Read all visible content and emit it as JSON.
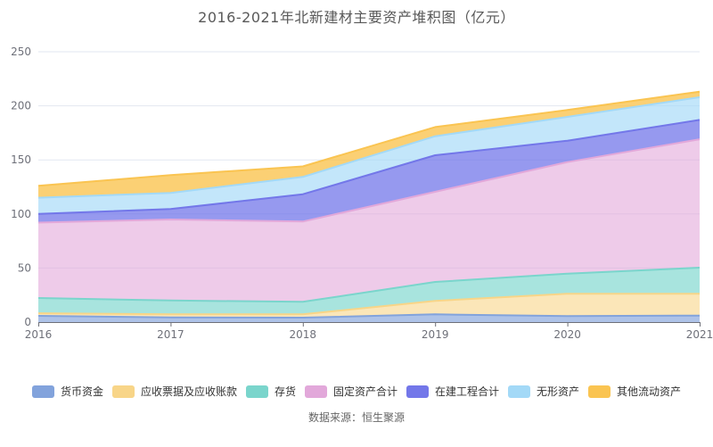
{
  "title": "2016-2021年北新建材主要资产堆积图（亿元）",
  "source": "数据来源：恒生聚源",
  "axis": {
    "label_color": "#6E7079",
    "grid_color": "#E2E7F1",
    "axis_line_color": "#6E7079"
  },
  "chart_data": {
    "type": "area",
    "stacked": true,
    "title": "2016-2021年北新建材主要资产堆积图（亿元）",
    "x": [
      "2016",
      "2017",
      "2018",
      "2019",
      "2020",
      "2021"
    ],
    "ylim": [
      0,
      250
    ],
    "ytick_step": 50,
    "grid": true,
    "legend_position": "bottom",
    "series": [
      {
        "name": "货币资金",
        "color": "#82A3DC",
        "fill_opacity": 0.65,
        "values": [
          5.8,
          4.4,
          4.1,
          7.2,
          5.5,
          6.0
        ]
      },
      {
        "name": "应收票据及应收账款",
        "color": "#F8D588",
        "fill_opacity": 0.6,
        "values": [
          2.4,
          2.8,
          3.1,
          12.4,
          20.7,
          20.2
        ]
      },
      {
        "name": "存货",
        "color": "#7AD5CC",
        "fill_opacity": 0.65,
        "values": [
          14.1,
          12.8,
          11.5,
          17.5,
          18.6,
          24.1
        ]
      },
      {
        "name": "固定资产合计",
        "color": "#E2A8DA",
        "fill_opacity": 0.6,
        "values": [
          69.7,
          74.9,
          74.3,
          83.4,
          103.1,
          118.8
        ]
      },
      {
        "name": "在建工程合计",
        "color": "#7377E9",
        "fill_opacity": 0.75,
        "values": [
          8.0,
          9.6,
          25.2,
          33.8,
          19.8,
          17.9
        ]
      },
      {
        "name": "无形资产",
        "color": "#A3D9F7",
        "fill_opacity": 0.65,
        "values": [
          15.0,
          15.0,
          16.0,
          17.6,
          22.1,
          20.9
        ]
      },
      {
        "name": "其他流动资产",
        "color": "#FAC451",
        "fill_opacity": 0.8,
        "values": [
          11.0,
          16.5,
          9.8,
          8.5,
          6.3,
          5.2
        ]
      }
    ],
    "stacked_totals": [
      126.0,
      136.0,
      144.0,
      180.4,
      196.1,
      213.1
    ]
  }
}
